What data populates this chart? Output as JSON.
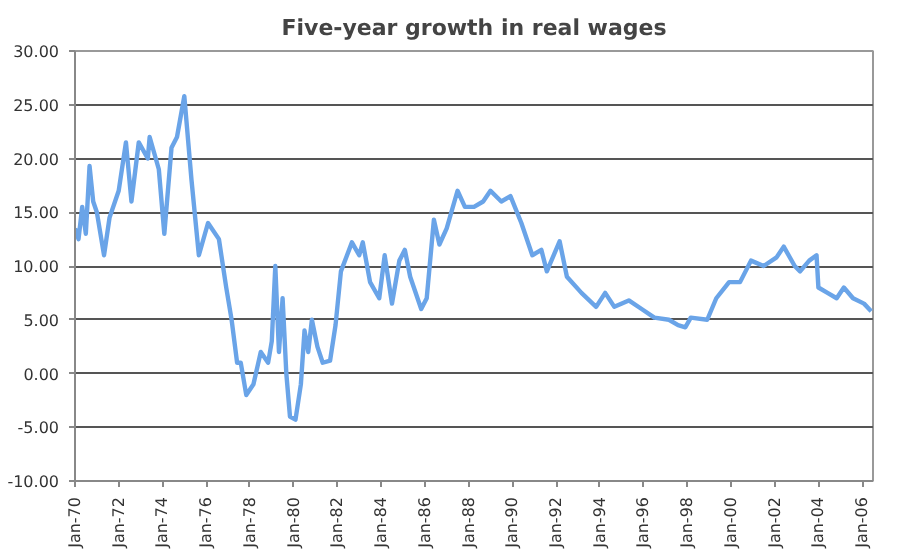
{
  "chart_data": {
    "type": "line",
    "title": "Five-year growth in real wages",
    "x": [
      "1970-01",
      "1970-03",
      "1970-05",
      "1970-07",
      "1970-09",
      "1970-11",
      "1971-01",
      "1971-05",
      "1971-08",
      "1972-01",
      "1972-05",
      "1972-08",
      "1972-12",
      "1973-05",
      "1973-06",
      "1973-11",
      "1974-02",
      "1974-06",
      "1974-09",
      "1975-01",
      "1975-05",
      "1975-09",
      "1976-02",
      "1976-08",
      "1976-12",
      "1977-03",
      "1977-06",
      "1977-08",
      "1977-11",
      "1978-03",
      "1978-07",
      "1978-11",
      "1979-01",
      "1979-03",
      "1979-05",
      "1979-07",
      "1979-09",
      "1979-11",
      "1980-02",
      "1980-05",
      "1980-07",
      "1980-09",
      "1980-11",
      "1981-02",
      "1981-05",
      "1981-09",
      "1981-12",
      "1982-03",
      "1982-09",
      "1983-01",
      "1983-03",
      "1983-07",
      "1983-12",
      "1984-03",
      "1984-07",
      "1984-11",
      "1985-02",
      "1985-05",
      "1985-11",
      "1986-02",
      "1986-06",
      "1986-09",
      "1987-01",
      "1987-07",
      "1987-11",
      "1988-04",
      "1988-09",
      "1989-01",
      "1989-07",
      "1989-12",
      "1990-06",
      "1990-12",
      "1991-05",
      "1991-08",
      "1992-03",
      "1992-07",
      "1993-03",
      "1993-11",
      "1994-04",
      "1994-09",
      "1995-05",
      "1995-12",
      "1996-07",
      "1997-03",
      "1997-08",
      "1997-12",
      "1998-03",
      "1998-12",
      "1999-05",
      "1999-12",
      "2000-06",
      "2000-12",
      "2001-07",
      "2002-02",
      "2002-06",
      "2002-12",
      "2003-03",
      "2003-08",
      "2003-12",
      "2004-01",
      "2004-06",
      "2004-11",
      "2005-03",
      "2005-08",
      "2006-02",
      "2006-06"
    ],
    "series": [
      {
        "color": "#6aa4e8",
        "values": [
          13.5,
          12.5,
          15.5,
          13,
          19.3,
          16,
          15,
          11,
          14.5,
          17,
          21.5,
          16,
          21.5,
          20,
          22,
          19,
          13,
          21,
          22,
          25.8,
          18,
          11,
          14,
          12.5,
          8,
          5,
          1,
          1,
          -2,
          -1,
          2,
          1,
          3,
          10,
          2,
          7,
          0,
          -4,
          -4.3,
          -1,
          4,
          2,
          5,
          2.5,
          1,
          1.2,
          4.5,
          9.5,
          12.2,
          11,
          12.2,
          8.5,
          7,
          11,
          6.5,
          10.5,
          11.5,
          9,
          6,
          7,
          14.3,
          12,
          13.5,
          17,
          15.5,
          15.5,
          16,
          17,
          16,
          16.5,
          14,
          11,
          11.5,
          9.5,
          12.3,
          9,
          7.5,
          6.2,
          7.5,
          6.2,
          6.8,
          6,
          5.2,
          5,
          4.5,
          4.3,
          5.2,
          5,
          7,
          8.5,
          8.5,
          10.5,
          10,
          10.8,
          11.8,
          10,
          9.5,
          10.5,
          11,
          8,
          7.5,
          7,
          8,
          7,
          6.5,
          5.8
        ]
      }
    ],
    "xlim": [
      "1970-01",
      "2006-07"
    ],
    "xticks": [
      {
        "value": "1970-01",
        "label": "Jan-70"
      },
      {
        "value": "1972-01",
        "label": "Jan-72"
      },
      {
        "value": "1974-01",
        "label": "Jan-74"
      },
      {
        "value": "1976-01",
        "label": "Jan-76"
      },
      {
        "value": "1978-01",
        "label": "Jan-78"
      },
      {
        "value": "1980-01",
        "label": "Jan-80"
      },
      {
        "value": "1982-01",
        "label": "Jan-82"
      },
      {
        "value": "1984-01",
        "label": "Jan-84"
      },
      {
        "value": "1986-01",
        "label": "Jan-86"
      },
      {
        "value": "1988-01",
        "label": "Jan-88"
      },
      {
        "value": "1990-01",
        "label": "Jan-90"
      },
      {
        "value": "1992-01",
        "label": "Jan-92"
      },
      {
        "value": "1994-01",
        "label": "Jan-94"
      },
      {
        "value": "1996-01",
        "label": "Jan-96"
      },
      {
        "value": "1998-01",
        "label": "Jan-98"
      },
      {
        "value": "2000-01",
        "label": "Jan-00"
      },
      {
        "value": "2002-01",
        "label": "Jan-02"
      },
      {
        "value": "2004-01",
        "label": "Jan-04"
      },
      {
        "value": "2006-01",
        "label": "Jan-06"
      }
    ],
    "ylim": [
      -10,
      30
    ],
    "yticks": [
      {
        "value": -10,
        "label": "-10.00"
      },
      {
        "value": -5,
        "label": "-5.00"
      },
      {
        "value": 0,
        "label": "0.00"
      },
      {
        "value": 5,
        "label": "5.00"
      },
      {
        "value": 10,
        "label": "10.00"
      },
      {
        "value": 15,
        "label": "15.00"
      },
      {
        "value": 20,
        "label": "20.00"
      },
      {
        "value": 25,
        "label": "25.00"
      },
      {
        "value": 30,
        "label": "30.00"
      }
    ],
    "grid": "y",
    "marker": "none",
    "line_style": "solid"
  }
}
